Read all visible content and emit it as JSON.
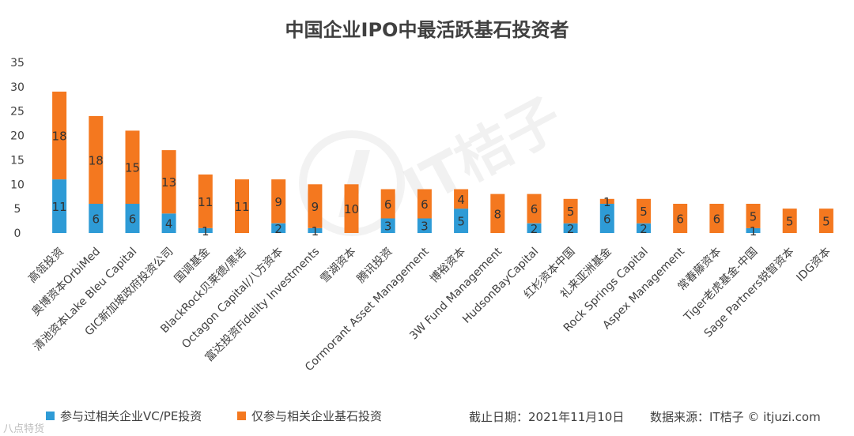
{
  "chart_data": {
    "type": "bar",
    "stacked": true,
    "title": "中国企业IPO中最活跃基石投资者",
    "categories": [
      "高瓴投资",
      "奥博资本OrbiMed",
      "清池资本Lake Bleu Capital",
      "GIC新加坡政府投资公司",
      "国调基金",
      "BlackRock贝莱德/黑岩",
      "Octagon Capital/八方资本",
      "富达投资Fidelity Investments",
      "雪湖资本",
      "腾讯投资",
      "Cormorant Asset Management",
      "博裕资本",
      "3W Fund Management",
      "HudsonBayCapital",
      "红杉资本中国",
      "礼来亚洲基金",
      "Rock Springs Capital",
      "Aspex Management",
      "常春藤资本",
      "Tiger老虎基金-中国",
      "Sage Partners锐智资本",
      "IDG资本"
    ],
    "series": [
      {
        "name": "参与过相关企业VC/PE投资",
        "color": "#2e9bd6",
        "values": [
          11,
          6,
          6,
          4,
          1,
          0,
          2,
          1,
          0,
          3,
          3,
          5,
          0,
          2,
          2,
          6,
          2,
          0,
          0,
          1,
          0,
          0
        ],
        "labels": [
          "11",
          "6",
          "6",
          "4",
          "1",
          "",
          "2",
          "1",
          "",
          "3",
          "3",
          "5",
          "",
          "2",
          "2",
          "6",
          "2",
          "",
          "",
          "1",
          "",
          ""
        ]
      },
      {
        "name": "仅参与相关企业基石投资",
        "color": "#f4781f",
        "values": [
          18,
          18,
          15,
          13,
          11,
          11,
          9,
          9,
          10,
          6,
          6,
          4,
          8,
          6,
          5,
          1,
          5,
          6,
          6,
          5,
          5,
          5
        ],
        "labels": [
          "18",
          "18",
          "15",
          "13",
          "11",
          "11",
          "9",
          "9",
          "10",
          "6",
          "6",
          "4",
          "8",
          "6",
          "5",
          "1",
          "5",
          "6",
          "6",
          "5",
          "5",
          "5"
        ]
      }
    ],
    "yticks": [
      "0",
      "5",
      "10",
      "15",
      "20",
      "25",
      "30",
      "35"
    ],
    "ylim": [
      0,
      35
    ],
    "xlabel": "",
    "ylabel": "",
    "grid": false,
    "legend_position": "bottom-left"
  },
  "footer": {
    "date": "截止日期：2021年11月10日",
    "source": "数据来源：IT桔子 © itjuzi.com"
  },
  "watermark": {
    "text": "IT桔子",
    "corner_mark": "八点特货"
  }
}
